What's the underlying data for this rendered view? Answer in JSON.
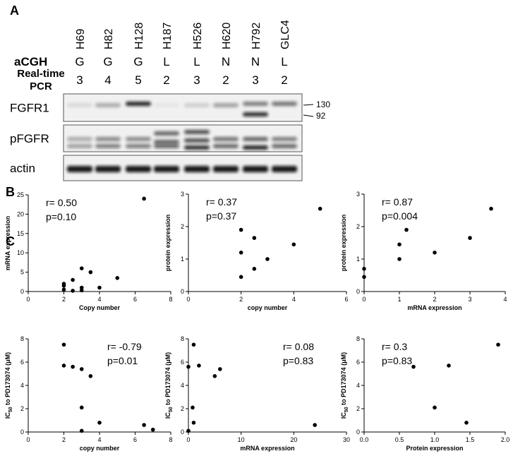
{
  "panel_a": {
    "label": "A",
    "cell_lines": [
      "H69",
      "H82",
      "H128",
      "H187",
      "H526",
      "H620",
      "H792",
      "GLC4"
    ],
    "acgh_label": "aCGH",
    "acgh": [
      "G",
      "G",
      "G",
      "L",
      "L",
      "N",
      "N",
      "L"
    ],
    "pcr_label": [
      "Real-time",
      "PCR"
    ],
    "pcr": [
      "3",
      "4",
      "5",
      "2",
      "3",
      "2",
      "3",
      "2"
    ],
    "blots": [
      "FGFR1",
      "pFGFR",
      "actin"
    ],
    "markers": [
      "130",
      "92"
    ]
  },
  "panel_labels": [
    "B",
    "C"
  ],
  "chart_data": [
    {
      "type": "scatter",
      "x": [
        2,
        2,
        2,
        2.5,
        2.5,
        3,
        3,
        3,
        3.5,
        4,
        5,
        6.5
      ],
      "y": [
        0.5,
        1.5,
        2,
        0.2,
        3,
        1,
        0.3,
        6,
        5,
        1,
        3.5,
        24
      ],
      "xlim": [
        0,
        8
      ],
      "ylim": [
        0,
        25
      ],
      "xticks": [
        0,
        2,
        4,
        6,
        8
      ],
      "yticks": [
        0,
        5,
        10,
        15,
        20,
        25
      ],
      "xlabel": "Copy number",
      "ylabel": [
        "mRNA expression"
      ],
      "annotations": [
        "r= 0.50",
        "p=0.10"
      ]
    },
    {
      "type": "scatter",
      "x": [
        2,
        2,
        2,
        2.5,
        2.5,
        3,
        4,
        5
      ],
      "y": [
        0.45,
        1.2,
        1.9,
        0.7,
        1.65,
        1,
        1.45,
        2.55
      ],
      "xlim": [
        0,
        6
      ],
      "ylim": [
        0,
        3
      ],
      "xticks": [
        0,
        2,
        4,
        6
      ],
      "yticks": [
        0,
        1,
        2,
        3
      ],
      "xlabel": "copy number",
      "ylabel": [
        "protein expression"
      ],
      "annotations": [
        "r= 0.37",
        "p=0.37"
      ]
    },
    {
      "type": "scatter",
      "x": [
        0,
        0,
        1,
        1,
        1.2,
        2,
        3,
        3.6
      ],
      "y": [
        0.45,
        0.7,
        1,
        1.45,
        1.9,
        1.2,
        1.65,
        2.55
      ],
      "xlim": [
        0,
        4
      ],
      "ylim": [
        0,
        3
      ],
      "xticks": [
        0,
        1,
        2,
        3,
        4
      ],
      "yticks": [
        0,
        1,
        2,
        3
      ],
      "xlabel": "mRNA expression",
      "ylabel": [
        "protein expression"
      ],
      "annotations": [
        "r= 0.87",
        "p=0.004"
      ]
    },
    {
      "type": "scatter",
      "x": [
        2,
        2,
        2.5,
        3,
        3.5,
        3,
        3,
        4,
        6.5,
        7
      ],
      "y": [
        7.5,
        5.7,
        5.6,
        5.4,
        4.8,
        2.1,
        0.1,
        0.8,
        0.6,
        0.2
      ],
      "xlim": [
        0,
        8
      ],
      "ylim": [
        0,
        8
      ],
      "xticks": [
        0,
        2,
        4,
        6,
        8
      ],
      "yticks": [
        0,
        2,
        4,
        6,
        8
      ],
      "xlabel": "copy number",
      "ylabel": [
        "IC",
        "50",
        " to PD173074 (μM)"
      ],
      "annotations": [
        "r= -0.79",
        "p=0.01"
      ]
    },
    {
      "type": "scatter",
      "x": [
        0,
        1,
        0.8,
        0,
        1,
        2,
        5,
        6,
        24
      ],
      "y": [
        5.6,
        7.5,
        2.1,
        0.1,
        0.8,
        5.7,
        4.8,
        5.4,
        0.6
      ],
      "xlim": [
        0,
        30
      ],
      "ylim": [
        0,
        8
      ],
      "xticks": [
        0,
        10,
        20,
        30
      ],
      "yticks": [
        0,
        2,
        4,
        6,
        8
      ],
      "xlabel": "mRNA expression",
      "ylabel": [
        "IC",
        "50",
        " to PD173074 (μM)"
      ],
      "annotations": [
        "r= 0.08",
        "p=0.83"
      ]
    },
    {
      "type": "scatter",
      "x": [
        0.7,
        1,
        1.2,
        1.45,
        1.9
      ],
      "y": [
        5.6,
        2.1,
        5.7,
        0.8,
        7.5
      ],
      "xlim": [
        0,
        2
      ],
      "ylim": [
        0,
        8
      ],
      "xticks": [
        {
          "value": 0,
          "label": "0.0"
        },
        {
          "value": 0.5,
          "label": "0.5"
        },
        {
          "value": 1,
          "label": "1.0"
        },
        {
          "value": 1.5,
          "label": "1.5"
        },
        {
          "value": 2,
          "label": "2.0"
        }
      ],
      "yticks": [
        0,
        2,
        4,
        6,
        8
      ],
      "xlabel": "Protein expression",
      "ylabel": [
        "IC",
        "50",
        " to PD173074 (μM)"
      ],
      "annotations": [
        "r= 0.3",
        "p=0.83"
      ]
    }
  ]
}
